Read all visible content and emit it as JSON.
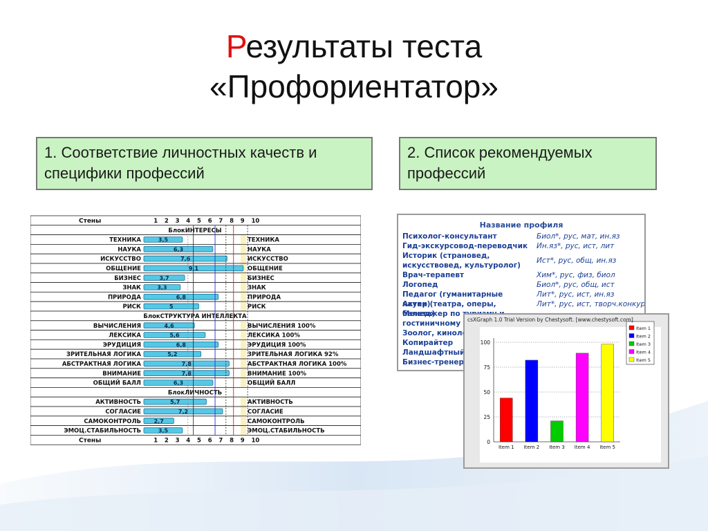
{
  "title": {
    "first_letter": "Р",
    "rest": "езультаты теста",
    "line2": "«Профориентатор»"
  },
  "box1": {
    "text": "1. Соответствие личностных качеств и специфики профессий"
  },
  "box2": {
    "text": "2. Список рекомендуемых профессий"
  },
  "scores": {
    "header_label": "Стены",
    "footer_label": "Стены",
    "scale": [
      "1",
      "2",
      "3",
      "4",
      "5",
      "6",
      "7",
      "8",
      "9",
      "10"
    ],
    "rows": [
      {
        "type": "section",
        "label": "БлокИНТЕРЕСЫ"
      },
      {
        "type": "item",
        "label": "ТЕХНИКА",
        "value": 3.5,
        "value_text": "3,5",
        "right": "ТЕХНИКА"
      },
      {
        "type": "item",
        "label": "НАУКА",
        "value": 6.3,
        "value_text": "6,3",
        "right": "НАУКА"
      },
      {
        "type": "item",
        "label": "ИСКУССТВО",
        "value": 7.6,
        "value_text": "7,6",
        "right": "ИСКУССТВО"
      },
      {
        "type": "item",
        "label": "ОБЩЕНИЕ",
        "value": 9.1,
        "value_text": "9,1",
        "right": "ОБЩЕНИЕ"
      },
      {
        "type": "item",
        "label": "БИЗНЕС",
        "value": 3.7,
        "value_text": "3,7",
        "right": "БИЗНЕС"
      },
      {
        "type": "item",
        "label": "ЗНАК",
        "value": 3.3,
        "value_text": "3,3",
        "right": "ЗНАК"
      },
      {
        "type": "item",
        "label": "ПРИРОДА",
        "value": 6.8,
        "value_text": "6,8",
        "right": "ПРИРОДА"
      },
      {
        "type": "item",
        "label": "РИСК",
        "value": 5,
        "value_text": "5",
        "right": "РИСК"
      },
      {
        "type": "section",
        "label": "БлокСТРУКТУРА ИНТЕЛЛЕКТА"
      },
      {
        "type": "item",
        "label": "ВЫЧИСЛЕНИЯ",
        "value": 4.6,
        "value_text": "4,6",
        "right": "ВЫЧИСЛЕНИЯ 100%"
      },
      {
        "type": "item",
        "label": "ЛЕКСИКА",
        "value": 5.6,
        "value_text": "5,6",
        "right": "ЛЕКСИКА 100%"
      },
      {
        "type": "item",
        "label": "ЭРУДИЦИЯ",
        "value": 6.8,
        "value_text": "6,8",
        "right": "ЭРУДИЦИЯ 100%"
      },
      {
        "type": "item",
        "label": "ЗРИТЕЛЬНАЯ ЛОГИКА",
        "value": 5.2,
        "value_text": "5,2",
        "right": "ЗРИТЕЛЬНАЯ ЛОГИКА 92%"
      },
      {
        "type": "item",
        "label": "АБСТРАКТНАЯ ЛОГИКА",
        "value": 7.8,
        "value_text": "7,8",
        "right": "АБСТРАКТНАЯ ЛОГИКА 100%"
      },
      {
        "type": "item",
        "label": "ВНИМАНИЕ",
        "value": 7.8,
        "value_text": "7,8",
        "right": "ВНИМАНИЕ 100%"
      },
      {
        "type": "item",
        "label": "ОБЩИЙ БАЛЛ",
        "value": 6.3,
        "value_text": "6,3",
        "right": "ОБЩИЙ БАЛЛ"
      },
      {
        "type": "section",
        "label": "БлокЛИЧНОСТЬ"
      },
      {
        "type": "item",
        "label": "АКТИВНОСТЬ",
        "value": 5.7,
        "value_text": "5,7",
        "right": "АКТИВНОСТЬ"
      },
      {
        "type": "item",
        "label": "СОГЛАСИЕ",
        "value": 7.2,
        "value_text": "7,2",
        "right": "СОГЛАСИЕ"
      },
      {
        "type": "item",
        "label": "САМОКОНТРОЛЬ",
        "value": 2.7,
        "value_text": "2,7",
        "right": "САМОКОНТРОЛЬ"
      },
      {
        "type": "item",
        "label": "ЭМОЦ.СТАБИЛЬНОСТЬ",
        "value": 3.5,
        "value_text": "3,5",
        "right": "ЭМОЦ.СТАБИЛЬНОСТЬ"
      }
    ]
  },
  "professions": {
    "header": "Название профиля",
    "items": [
      {
        "name": "Психолог-консультант",
        "subjects": "Биол*, рус, мат, ин.яз"
      },
      {
        "name": "Гид-экскурсовод-переводчик",
        "subjects": "Ин.яз*, рус, ист, лит"
      },
      {
        "name": "Историк (страновед, искусствовед, культуролог)",
        "subjects": "Ист*, рус, общ, ин.яз"
      },
      {
        "name": "Врач-терапевт",
        "subjects": "Хим*, рус, физ, биол"
      },
      {
        "name": "Логопед",
        "subjects": "Биол*, рус, общ, ист"
      },
      {
        "name": "Педагог (гуманитарные науки)",
        "subjects": "Лит*, рус, ист, ин.яз"
      },
      {
        "name": "Актер (театра, оперы, балета)",
        "subjects": "Лит*, рус, ист, творч.конкурс"
      },
      {
        "name": "Менеджер по туризму и гостиничному б",
        "subjects": ""
      },
      {
        "name": "Зоолог, кинолог",
        "subjects": ""
      },
      {
        "name": "Копирайтер",
        "subjects": ""
      },
      {
        "name": "Ландшафтный д",
        "subjects": ""
      },
      {
        "name": "Бизнес-тренер",
        "subjects": ""
      }
    ]
  },
  "chart_window_caption": "csXGraph 1.0 Trial Version by Chestysoft. [www.chestysoft.com]",
  "chart_data": {
    "type": "bar",
    "categories": [
      "Item 1",
      "Item 2",
      "Item 3",
      "Item 4",
      "Item 5"
    ],
    "values": [
      44,
      82,
      21,
      89,
      98
    ],
    "colors": [
      "#ff0000",
      "#0000ff",
      "#00cc00",
      "#ff00ff",
      "#ffff00"
    ],
    "legend": [
      "Item 1",
      "Item 2",
      "Item 3",
      "Item 4",
      "Item 5"
    ],
    "legend_position": "top-right",
    "yticks": [
      "0",
      "25",
      "50",
      "75",
      "100"
    ],
    "ylim": [
      0,
      100
    ],
    "grid": true
  }
}
